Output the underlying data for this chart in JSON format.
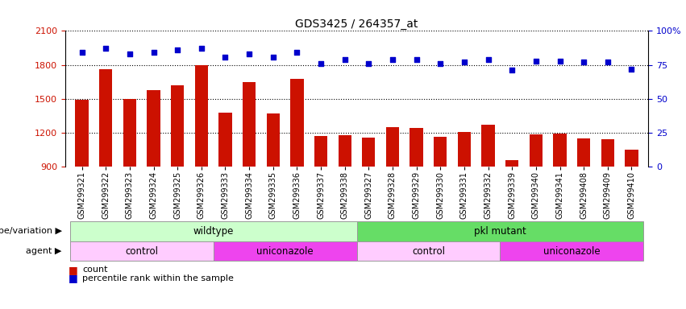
{
  "title": "GDS3425 / 264357_at",
  "samples": [
    "GSM299321",
    "GSM299322",
    "GSM299323",
    "GSM299324",
    "GSM299325",
    "GSM299326",
    "GSM299333",
    "GSM299334",
    "GSM299335",
    "GSM299336",
    "GSM299337",
    "GSM299338",
    "GSM299327",
    "GSM299328",
    "GSM299329",
    "GSM299330",
    "GSM299331",
    "GSM299332",
    "GSM299339",
    "GSM299340",
    "GSM299341",
    "GSM299408",
    "GSM299409",
    "GSM299410"
  ],
  "counts": [
    1490,
    1760,
    1500,
    1580,
    1620,
    1800,
    1380,
    1650,
    1370,
    1680,
    1175,
    1180,
    1155,
    1250,
    1240,
    1165,
    1210,
    1270,
    960,
    1185,
    1195,
    1150,
    1145,
    1050
  ],
  "percentile_ranks": [
    84,
    87,
    83,
    84,
    86,
    87,
    81,
    83,
    81,
    84,
    76,
    79,
    76,
    79,
    79,
    76,
    77,
    79,
    71,
    78,
    78,
    77,
    77,
    72
  ],
  "bar_color": "#cc1100",
  "dot_color": "#0000cc",
  "ylim_left": [
    900,
    2100
  ],
  "yticks_left": [
    900,
    1200,
    1500,
    1800,
    2100
  ],
  "ylim_right": [
    0,
    100
  ],
  "yticks_right": [
    0,
    25,
    50,
    75,
    100
  ],
  "groups": [
    {
      "label": "wildtype",
      "start": 0,
      "end": 11,
      "color": "#ccffcc"
    },
    {
      "label": "pkl mutant",
      "start": 12,
      "end": 23,
      "color": "#66dd66"
    }
  ],
  "agents": [
    {
      "label": "control",
      "start": 0,
      "end": 5,
      "color": "#ffccff"
    },
    {
      "label": "uniconazole",
      "start": 6,
      "end": 11,
      "color": "#ee44ee"
    },
    {
      "label": "control",
      "start": 12,
      "end": 17,
      "color": "#ffccff"
    },
    {
      "label": "uniconazole",
      "start": 18,
      "end": 23,
      "color": "#ee44ee"
    }
  ],
  "label_row1": "genotype/variation",
  "label_row2": "agent",
  "title_fontsize": 10,
  "tick_fontsize": 7
}
